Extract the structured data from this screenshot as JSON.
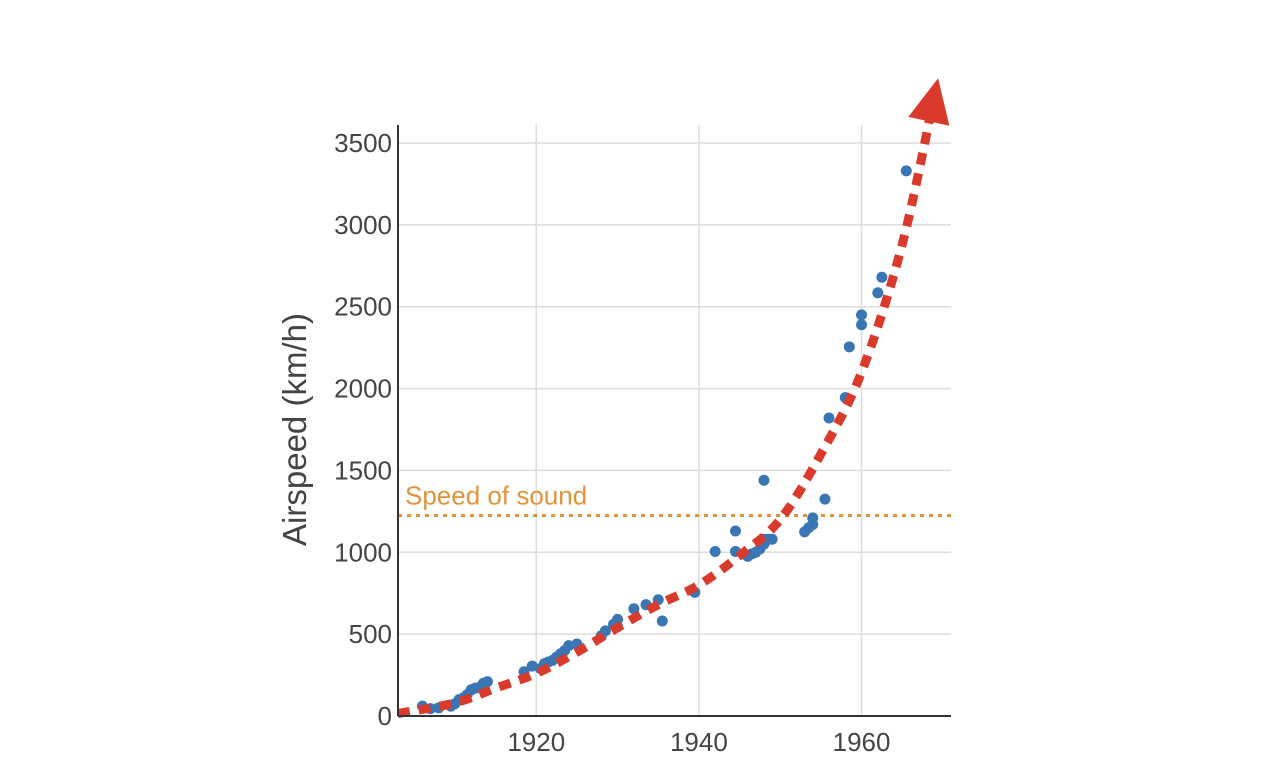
{
  "chart_data": {
    "type": "scatter",
    "title": "",
    "xlabel": "",
    "ylabel": "Airspeed (km/h)",
    "xlim": [
      1903,
      1971
    ],
    "ylim": [
      0,
      3500
    ],
    "grid": true,
    "x_ticks": [
      1920,
      1940,
      1960
    ],
    "y_ticks": [
      0,
      500,
      1000,
      1500,
      2000,
      2500,
      3000,
      3500
    ],
    "colors": {
      "points": "#3a76b3",
      "trend": "#d93a2b",
      "reference": "#e0943c",
      "grid": "#dddddd",
      "axis": "#333333"
    },
    "reference_line": {
      "label": "Speed of sound",
      "y": 1225,
      "style": "dotted"
    },
    "trend_line": {
      "style": "dashed-arrow",
      "points": [
        [
          1903,
          15
        ],
        [
          1910,
          80
        ],
        [
          1915,
          170
        ],
        [
          1920,
          260
        ],
        [
          1925,
          390
        ],
        [
          1930,
          540
        ],
        [
          1935,
          680
        ],
        [
          1940,
          800
        ],
        [
          1945,
          980
        ],
        [
          1950,
          1200
        ],
        [
          1955,
          1600
        ],
        [
          1960,
          2100
        ],
        [
          1965,
          2880
        ],
        [
          1969,
          3800
        ]
      ]
    },
    "series": [
      {
        "points": [
          [
            1906,
            60
          ],
          [
            1907,
            45
          ],
          [
            1908,
            50
          ],
          [
            1909.5,
            60
          ],
          [
            1910,
            75
          ],
          [
            1910.5,
            100
          ],
          [
            1911,
            110
          ],
          [
            1911.5,
            130
          ],
          [
            1912,
            160
          ],
          [
            1912.5,
            170
          ],
          [
            1913,
            175
          ],
          [
            1913.5,
            200
          ],
          [
            1914,
            210
          ],
          [
            1918.5,
            270
          ],
          [
            1919.5,
            305
          ],
          [
            1920.5,
            290
          ],
          [
            1921,
            320
          ],
          [
            1921.5,
            330
          ],
          [
            1922,
            340
          ],
          [
            1922.5,
            360
          ],
          [
            1923,
            380
          ],
          [
            1923.5,
            400
          ],
          [
            1924,
            430
          ],
          [
            1925,
            440
          ],
          [
            1928,
            490
          ],
          [
            1928.5,
            520
          ],
          [
            1929.5,
            560
          ],
          [
            1930,
            590
          ],
          [
            1930,
            545
          ],
          [
            1932,
            655
          ],
          [
            1933.5,
            680
          ],
          [
            1935,
            710
          ],
          [
            1935.5,
            580
          ],
          [
            1939.5,
            755
          ],
          [
            1942,
            1005
          ],
          [
            1944.5,
            1005
          ],
          [
            1944.5,
            1130
          ],
          [
            1946,
            975
          ],
          [
            1946.5,
            990
          ],
          [
            1947,
            1000
          ],
          [
            1947.5,
            1020
          ],
          [
            1948,
            1050
          ],
          [
            1948,
            1080
          ],
          [
            1948.5,
            1080
          ],
          [
            1949,
            1080
          ],
          [
            1948,
            1440
          ],
          [
            1953,
            1125
          ],
          [
            1953.5,
            1150
          ],
          [
            1954,
            1170
          ],
          [
            1954,
            1210
          ],
          [
            1955.5,
            1325
          ],
          [
            1956,
            1820
          ],
          [
            1958,
            1945
          ],
          [
            1958.5,
            2255
          ],
          [
            1960,
            2390
          ],
          [
            1960,
            2450
          ],
          [
            1962,
            2585
          ],
          [
            1962.5,
            2680
          ],
          [
            1965.5,
            3330
          ]
        ]
      }
    ]
  }
}
